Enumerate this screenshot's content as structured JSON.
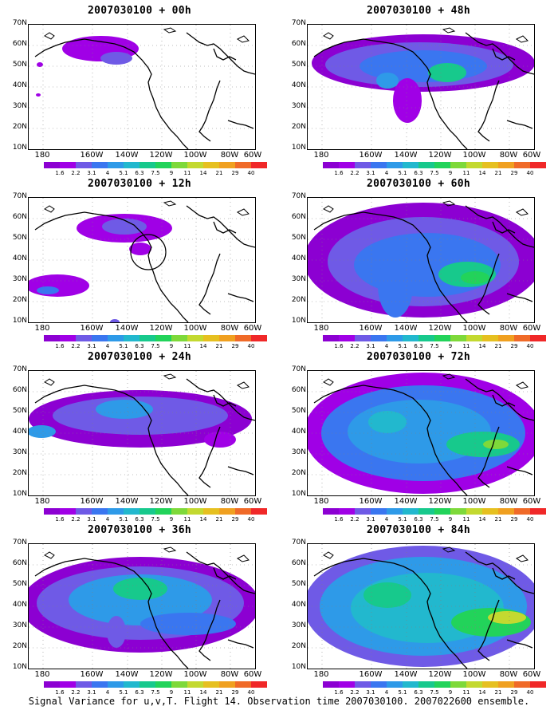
{
  "caption": "Signal Variance for u,v,T. Flight 14. Observation time 2007030100. 2007022600 ensemble.",
  "colors": {
    "levels": [
      "#8c00d2",
      "#a000e6",
      "#6f5ae6",
      "#3a76f0",
      "#2e9ae8",
      "#22b8ce",
      "#17c98c",
      "#22d35a",
      "#7ed93a",
      "#c3d930",
      "#e6c020",
      "#f0a020",
      "#f06a28",
      "#f02828",
      "#f02882"
    ],
    "coast": "#000000",
    "grid": "#808080"
  },
  "colorbar_labels": [
    "1.6",
    "2.2",
    "3.1",
    "4",
    "5.1",
    "6.3",
    "7.5",
    "9",
    "11",
    "14",
    "21",
    "29",
    "40"
  ],
  "y_axis_labels": [
    "70N",
    "60N",
    "50N",
    "40N",
    "30N",
    "20N",
    "10N"
  ],
  "x_axis_labels": [
    "180",
    "160W",
    "140W",
    "120W",
    "100W",
    "80W",
    "60W"
  ],
  "panels": [
    {
      "title": "2007030100 + 00h",
      "coverage": 0.15,
      "peak": 4
    },
    {
      "title": "2007030100 + 48h",
      "coverage": 0.65,
      "peak": 7
    },
    {
      "title": "2007030100 + 12h",
      "coverage": 0.35,
      "peak": 4
    },
    {
      "title": "2007030100 + 60h",
      "coverage": 0.85,
      "peak": 7
    },
    {
      "title": "2007030100 + 24h",
      "coverage": 0.5,
      "peak": 5
    },
    {
      "title": "2007030100 + 72h",
      "coverage": 0.9,
      "peak": 8
    },
    {
      "title": "2007030100 + 36h",
      "coverage": 0.7,
      "peak": 6
    },
    {
      "title": "2007030100 + 84h",
      "coverage": 0.95,
      "peak": 9
    }
  ]
}
